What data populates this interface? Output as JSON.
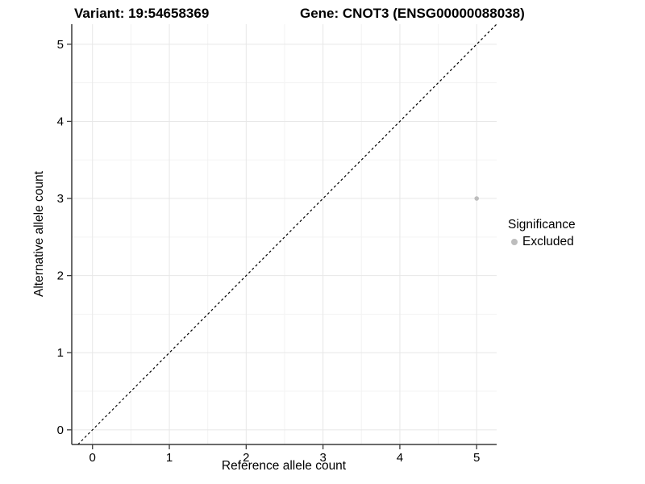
{
  "chart_data": {
    "type": "scatter",
    "title_left": "Variant: 19:54658369",
    "title_right": "Gene: CNOT3 (ENSG00000088038)",
    "xlabel": "Reference allele count",
    "ylabel": "Alternative allele count",
    "xlim": [
      -0.27,
      5.26
    ],
    "ylim": [
      -0.19,
      5.26
    ],
    "x_ticks": [
      0,
      1,
      2,
      3,
      4,
      5
    ],
    "y_ticks": [
      0,
      1,
      2,
      3,
      4,
      5
    ],
    "grid": "major+minor",
    "points": [
      {
        "x": 5,
        "y": 3,
        "significance": "Excluded"
      }
    ],
    "reference_line": {
      "slope": 1,
      "intercept": 0,
      "style": "dashed",
      "color": "#000000"
    },
    "legend": {
      "title": "Significance",
      "position": "right",
      "entries": [
        {
          "label": "Excluded",
          "color": "#bdbdbd",
          "marker": "circle"
        }
      ]
    },
    "colors": {
      "point": "#bdbdbd",
      "grid_major": "#e7e7e7",
      "grid_minor": "#f3f3f3",
      "axis_line": "#3a3a3a",
      "tick": "#3a3a3a",
      "text": "#000000",
      "background": "#ffffff"
    }
  }
}
